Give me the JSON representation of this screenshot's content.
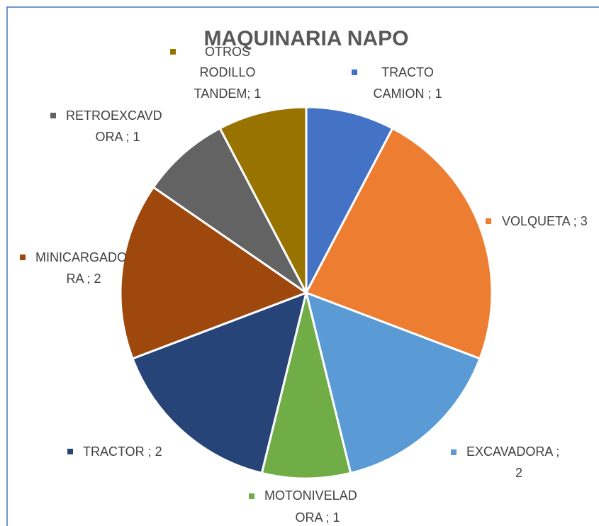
{
  "chart_data": {
    "type": "pie",
    "title": "MAQUINARIA NAPO",
    "values": [
      1,
      3,
      2,
      1,
      2,
      2,
      1,
      1
    ],
    "value_labels": [
      [
        "TRACTO",
        "CAMION ; 1"
      ],
      [
        "VOLQUETA ; 3"
      ],
      [
        "EXCAVADORA ;",
        "2"
      ],
      [
        "MOTONIVELAD",
        "ORA ; 1"
      ],
      [
        "TRACTOR ; 2"
      ],
      [
        "MINICARGADO",
        "RA ; 2"
      ],
      [
        "RETROEXCAVD",
        "ORA ; 1"
      ],
      [
        "OTROS",
        "RODILLO",
        "TANDEM; 1"
      ]
    ],
    "colors": [
      "#4472c4",
      "#ed7d31",
      "#5b9bd5",
      "#70ad47",
      "#264478",
      "#9e480e",
      "#636363",
      "#997300"
    ]
  }
}
